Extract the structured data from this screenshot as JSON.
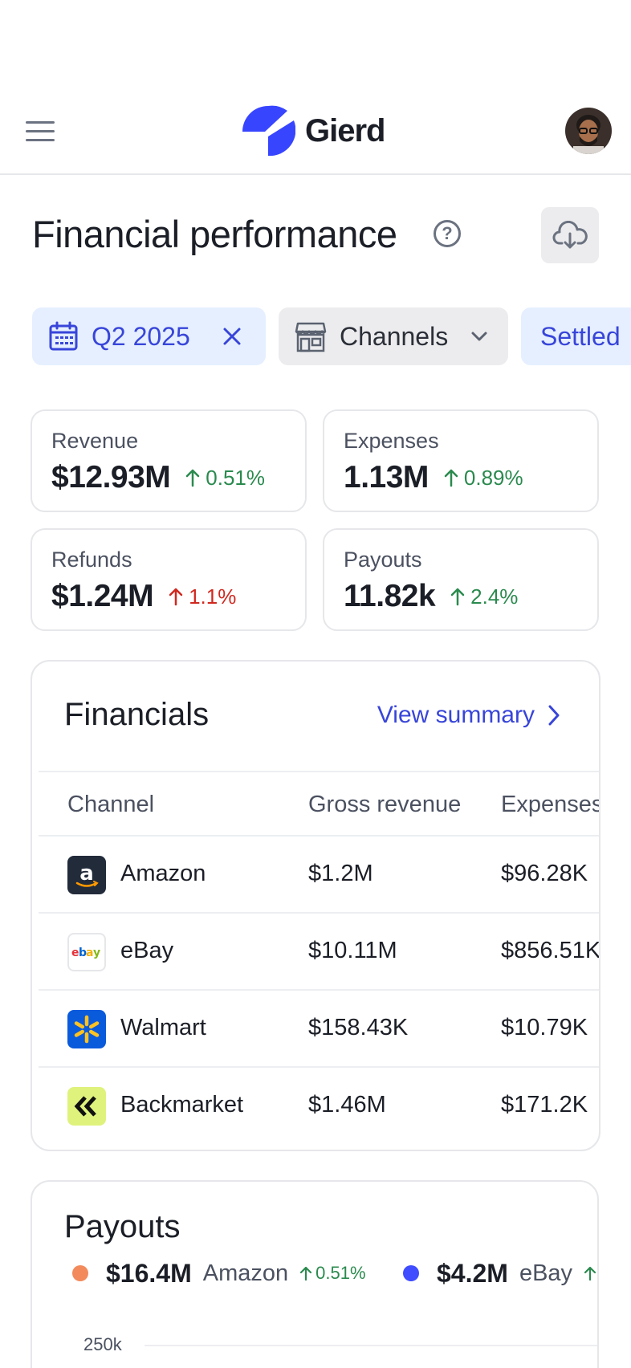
{
  "header": {
    "brand": "Gierd",
    "brand_color": "#3845ff"
  },
  "page": {
    "title": "Financial performance"
  },
  "filters": {
    "date_label": "Q2 2025",
    "channels_label": "Channels",
    "status_label": "Settled"
  },
  "stats": [
    {
      "label": "Revenue",
      "value": "$12.93M",
      "delta": "0.51%",
      "trend": "up"
    },
    {
      "label": "Expenses",
      "value": "1.13M",
      "delta": "0.89%",
      "trend": "up"
    },
    {
      "label": "Refunds",
      "value": "$1.24M",
      "delta": "1.1%",
      "trend": "up-negative"
    },
    {
      "label": "Payouts",
      "value": "11.82k",
      "delta": "2.4%",
      "trend": "up"
    }
  ],
  "financials": {
    "title": "Financials",
    "view_summary": "View summary",
    "columns": [
      "Channel",
      "Gross revenue",
      "Expenses"
    ],
    "rows": [
      {
        "channel": "Amazon",
        "gross_revenue": "$1.2M",
        "expenses": "$96.28K",
        "icon": "amazon-logo"
      },
      {
        "channel": "eBay",
        "gross_revenue": "$10.11M",
        "expenses": "$856.51K",
        "icon": "ebay-logo"
      },
      {
        "channel": "Walmart",
        "gross_revenue": "$158.43K",
        "expenses": "$10.79K",
        "icon": "walmart-logo"
      },
      {
        "channel": "Backmarket",
        "gross_revenue": "$1.46M",
        "expenses": "$171.2K",
        "icon": "backmarket-logo"
      }
    ]
  },
  "payouts": {
    "title": "Payouts",
    "legend": [
      {
        "value": "$16.4M",
        "name": "Amazon",
        "delta": "0.51%",
        "color": "#f28a5c"
      },
      {
        "value": "$4.2M",
        "name": "eBay",
        "delta": "",
        "color": "#3f4cff"
      }
    ],
    "y_tick_top": "250k"
  }
}
